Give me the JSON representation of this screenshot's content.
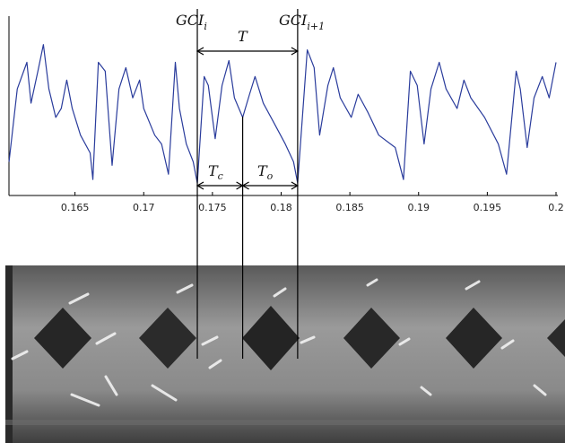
{
  "chart_data": {
    "type": "line",
    "x": [
      0.1602,
      0.1608,
      0.1615,
      0.1618,
      0.1623,
      0.1627,
      0.1631,
      0.1636,
      0.164,
      0.1644,
      0.1648,
      0.1654,
      0.1661,
      0.1663,
      0.1667,
      0.1672,
      0.1677,
      0.1682,
      0.1687,
      0.1692,
      0.1697,
      0.17,
      0.1708,
      0.1713,
      0.1718,
      0.1723,
      0.1726,
      0.1731,
      0.1736,
      0.1739,
      0.1744,
      0.1747,
      0.1752,
      0.1757,
      0.1762,
      0.1766,
      0.1772,
      0.1777,
      0.1781,
      0.1787,
      0.1794,
      0.1803,
      0.1809,
      0.1812,
      0.1819,
      0.1824,
      0.1828,
      0.1834,
      0.1838,
      0.1843,
      0.1851,
      0.1856,
      0.1863,
      0.1871,
      0.1883,
      0.1889,
      0.1894,
      0.1899,
      0.1904,
      0.1909,
      0.1915,
      0.192,
      0.1928,
      0.1933,
      0.1938,
      0.1948,
      0.1958,
      0.1964,
      0.1971,
      0.1974,
      0.1979,
      0.1984,
      0.199,
      0.1995,
      0.2
    ],
    "values": [
      0.19,
      0.6,
      0.75,
      0.52,
      0.7,
      0.85,
      0.6,
      0.44,
      0.49,
      0.65,
      0.49,
      0.34,
      0.24,
      0.09,
      0.75,
      0.7,
      0.17,
      0.6,
      0.72,
      0.55,
      0.65,
      0.49,
      0.34,
      0.29,
      0.12,
      0.75,
      0.49,
      0.29,
      0.19,
      0.07,
      0.67,
      0.62,
      0.32,
      0.62,
      0.76,
      0.55,
      0.44,
      0.57,
      0.67,
      0.52,
      0.42,
      0.29,
      0.19,
      0.07,
      0.82,
      0.72,
      0.34,
      0.62,
      0.72,
      0.55,
      0.44,
      0.57,
      0.47,
      0.34,
      0.27,
      0.09,
      0.7,
      0.62,
      0.29,
      0.6,
      0.75,
      0.6,
      0.49,
      0.65,
      0.55,
      0.44,
      0.29,
      0.12,
      0.7,
      0.6,
      0.27,
      0.55,
      0.67,
      0.55,
      0.75
    ],
    "color": "#2a3c9c",
    "xlim": [
      0.16,
      0.2
    ],
    "ylim": [
      0,
      1
    ],
    "xticks": [
      0.165,
      0.17,
      0.175,
      0.18,
      0.185,
      0.19,
      0.195,
      0.2
    ],
    "markers": [
      0.1739,
      0.1772,
      0.1812
    ],
    "annotations": [
      {
        "text": "GCI",
        "sub": "i"
      },
      {
        "text": "GCI",
        "sub": "i+1"
      },
      {
        "text": "T"
      },
      {
        "text": "T",
        "sub": "c"
      },
      {
        "text": "T",
        "sub": "o"
      }
    ]
  }
}
